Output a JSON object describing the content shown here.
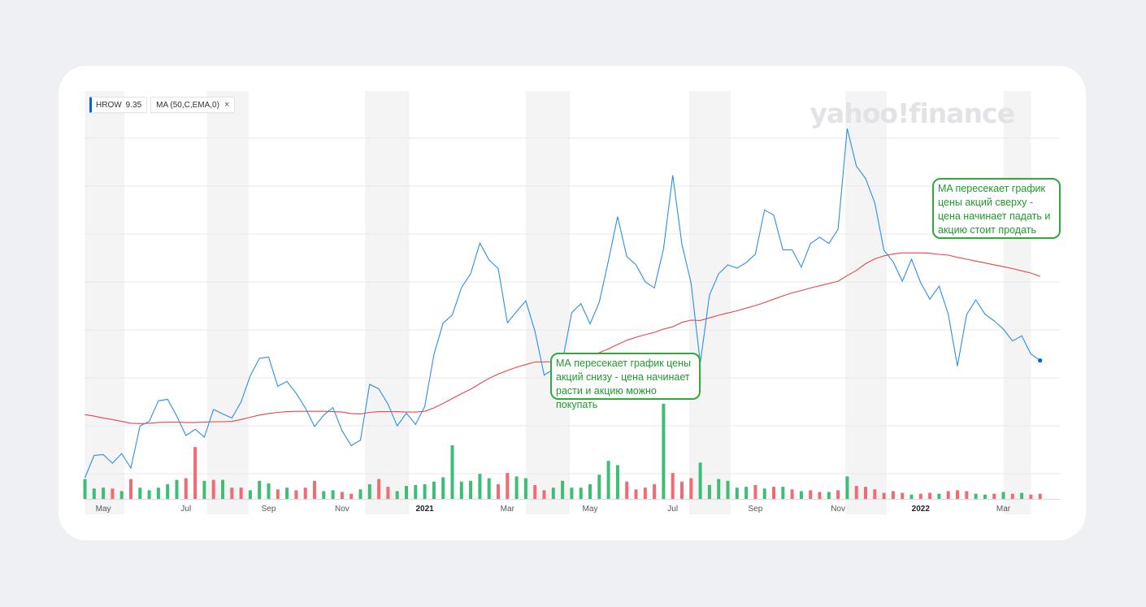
{
  "legend": {
    "symbol": "HROW",
    "price": "9.35",
    "indicator": "MA (50,C,EMA,0)",
    "close_glyph": "×"
  },
  "watermark": "yahoo!finance",
  "annotations": {
    "sell": " MA пересекает график цены акций сверху - цена начинает падать и акцию стоит продать",
    "buy": "МА пересекает график цены акций снизу - цена начинает расти и акцию можно покупать"
  },
  "colors": {
    "price_line": "#2d8fe3",
    "ma_line": "#e8444b",
    "volume_up": "#3dbd75",
    "volume_down": "#f26a72",
    "annotation": "#2faa3b",
    "shade": "#f4f4f5"
  },
  "chart_data": {
    "type": "line",
    "x_ticks": [
      {
        "label": "May",
        "i": 2,
        "bold": false
      },
      {
        "label": "Jul",
        "i": 11,
        "bold": false
      },
      {
        "label": "Sep",
        "i": 20,
        "bold": false
      },
      {
        "label": "Nov",
        "i": 28,
        "bold": false
      },
      {
        "label": "2021",
        "i": 37,
        "bold": true
      },
      {
        "label": "Mar",
        "i": 46,
        "bold": false
      },
      {
        "label": "May",
        "i": 55,
        "bold": false
      },
      {
        "label": "Jul",
        "i": 64,
        "bold": false
      },
      {
        "label": "Sep",
        "i": 73,
        "bold": false
      },
      {
        "label": "Nov",
        "i": 82,
        "bold": false
      },
      {
        "label": "2022",
        "i": 91,
        "bold": true
      },
      {
        "label": "Mar",
        "i": 100,
        "bold": false
      }
    ],
    "shaded_months": [
      [
        0,
        4.3
      ],
      [
        13.3,
        17.8
      ],
      [
        30.5,
        35.3
      ],
      [
        48,
        52.8
      ],
      [
        65.8,
        70.3
      ],
      [
        82.8,
        87.3
      ],
      [
        100,
        103
      ]
    ],
    "price_range": [
      0,
      10.2
    ],
    "volume_range": [
      0,
      11
    ],
    "series": [
      {
        "name": "HROW",
        "values": [
          0.0,
          0.6,
          0.62,
          0.39,
          0.65,
          0.26,
          1.39,
          1.51,
          2.06,
          2.1,
          1.65,
          1.13,
          1.3,
          1.09,
          1.83,
          1.71,
          1.6,
          2.03,
          2.73,
          3.2,
          3.23,
          2.45,
          2.58,
          2.26,
          1.87,
          1.37,
          1.68,
          1.88,
          1.26,
          0.86,
          1.01,
          2.5,
          2.38,
          1.97,
          1.39,
          1.73,
          1.43,
          1.91,
          3.3,
          4.14,
          4.36,
          5.09,
          5.46,
          6.28,
          5.83,
          5.6,
          4.15,
          4.45,
          4.74,
          3.92,
          2.75,
          2.9,
          3.13,
          4.42,
          4.66,
          4.12,
          4.7,
          5.81,
          6.99,
          5.92,
          5.7,
          5.25,
          5.08,
          6.13,
          8.1,
          6.25,
          5.21,
          3.07,
          4.89,
          5.46,
          5.7,
          5.61,
          5.76,
          5.99,
          7.17,
          7.03,
          6.1,
          6.1,
          5.64,
          6.27,
          6.44,
          6.27,
          6.65,
          9.35,
          8.34,
          8.01,
          7.36,
          6.09,
          5.78,
          5.26,
          5.85,
          5.22,
          4.78,
          5.13,
          4.38,
          2.99,
          4.37,
          4.76,
          4.38,
          4.2,
          3.98,
          3.66,
          3.8,
          3.31,
          3.14
        ]
      },
      {
        "name": "MA (50,C,EMA,0)",
        "values": [
          1.69,
          1.65,
          1.6,
          1.56,
          1.51,
          1.46,
          1.45,
          1.46,
          1.48,
          1.49,
          1.49,
          1.48,
          1.48,
          1.49,
          1.5,
          1.5,
          1.51,
          1.56,
          1.62,
          1.68,
          1.72,
          1.75,
          1.77,
          1.78,
          1.78,
          1.78,
          1.78,
          1.77,
          1.76,
          1.72,
          1.71,
          1.75,
          1.77,
          1.77,
          1.77,
          1.76,
          1.76,
          1.78,
          1.87,
          1.99,
          2.12,
          2.25,
          2.37,
          2.52,
          2.66,
          2.78,
          2.87,
          2.96,
          3.03,
          3.1,
          3.1,
          3.11,
          3.12,
          3.16,
          3.24,
          3.29,
          3.35,
          3.45,
          3.57,
          3.68,
          3.76,
          3.83,
          3.89,
          3.98,
          4.04,
          4.16,
          4.22,
          4.21,
          4.28,
          4.35,
          4.41,
          4.47,
          4.54,
          4.61,
          4.69,
          4.78,
          4.87,
          4.95,
          5.01,
          5.08,
          5.14,
          5.2,
          5.26,
          5.41,
          5.55,
          5.73,
          5.86,
          5.94,
          5.99,
          6.02,
          6.02,
          6.02,
          6.01,
          5.98,
          5.96,
          5.9,
          5.85,
          5.8,
          5.75,
          5.7,
          5.65,
          5.6,
          5.54,
          5.48,
          5.39
        ]
      },
      {
        "name": "volume",
        "values": [
          2.3,
          1.2,
          1.3,
          1.2,
          0.9,
          2.3,
          1.3,
          1.0,
          1.3,
          1.7,
          2.2,
          2.4,
          6.0,
          2.1,
          2.2,
          2.2,
          1.3,
          1.3,
          1.0,
          2.1,
          1.8,
          1.1,
          1.3,
          1.0,
          1.3,
          2.1,
          0.9,
          1.0,
          0.8,
          0.6,
          1.1,
          1.7,
          2.3,
          1.4,
          0.9,
          1.5,
          1.6,
          1.7,
          2.0,
          2.5,
          6.2,
          2.0,
          2.1,
          2.9,
          2.4,
          1.7,
          3.0,
          2.6,
          2.4,
          1.6,
          1.0,
          1.3,
          2.1,
          1.3,
          1.3,
          1.7,
          2.8,
          4.4,
          3.9,
          2.0,
          1.1,
          1.3,
          1.7,
          11.0,
          3.0,
          2.0,
          2.4,
          4.2,
          1.6,
          2.3,
          2.1,
          1.3,
          1.4,
          1.6,
          1.2,
          1.4,
          1.4,
          1.1,
          0.9,
          1.0,
          0.8,
          0.8,
          1.0,
          2.6,
          1.5,
          1.4,
          1.1,
          0.7,
          0.9,
          0.7,
          0.5,
          0.6,
          0.7,
          0.6,
          0.9,
          1.0,
          0.9,
          0.6,
          0.5,
          0.6,
          0.8,
          0.6,
          0.7,
          0.5,
          0.6
        ],
        "direction": [
          "u",
          "u",
          "u",
          "d",
          "u",
          "d",
          "u",
          "u",
          "u",
          "u",
          "u",
          "d",
          "d",
          "u",
          "d",
          "u",
          "d",
          "d",
          "u",
          "u",
          "u",
          "d",
          "u",
          "d",
          "d",
          "d",
          "u",
          "u",
          "d",
          "d",
          "u",
          "u",
          "d",
          "d",
          "u",
          "u",
          "u",
          "u",
          "u",
          "u",
          "u",
          "u",
          "u",
          "u",
          "u",
          "d",
          "d",
          "u",
          "u",
          "d",
          "d",
          "u",
          "u",
          "u",
          "u",
          "u",
          "u",
          "u",
          "u",
          "d",
          "d",
          "d",
          "d",
          "u",
          "d",
          "d",
          "d",
          "u",
          "u",
          "u",
          "u",
          "u",
          "u",
          "d",
          "u",
          "d",
          "u",
          "d",
          "u",
          "d",
          "d",
          "u",
          "d",
          "u",
          "d",
          "d",
          "d",
          "d",
          "d",
          "d",
          "u",
          "d",
          "d",
          "u",
          "d",
          "d",
          "d",
          "u",
          "u",
          "d",
          "u",
          "d",
          "u",
          "d",
          "d"
        ]
      }
    ]
  }
}
